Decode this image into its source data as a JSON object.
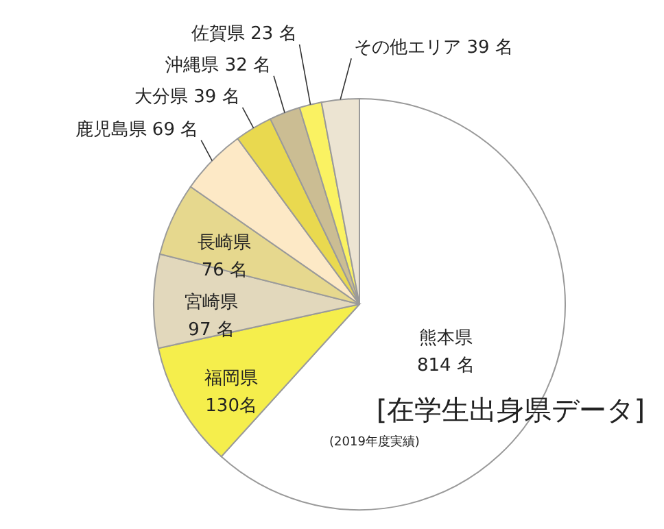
{
  "chart_data": {
    "type": "pie",
    "categories": [
      "熊本県",
      "福岡県",
      "宮崎県",
      "長崎県",
      "鹿児島県",
      "大分県",
      "沖縄県",
      "佐賀県",
      "その他エリア"
    ],
    "values": [
      814,
      130,
      97,
      76,
      69,
      39,
      32,
      23,
      39
    ],
    "value_labels": [
      "814 名",
      "130名",
      " 97 名",
      "76 名",
      "69 名",
      "39 名",
      "32 名",
      "23 名",
      "39 名"
    ],
    "colors": [
      "#ffffff",
      "#f5ee4c",
      "#e2d8bc",
      "#e6d88e",
      "#fde9c6",
      "#e9d94f",
      "#cbbd93",
      "#faf262",
      "#ece4d2"
    ],
    "annotations": [
      "[在学生出身県データ]",
      "(2019年度実績)"
    ]
  }
}
